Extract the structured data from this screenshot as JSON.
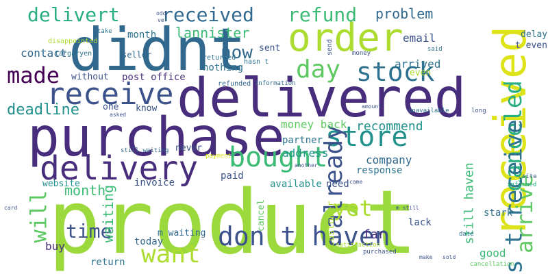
{
  "palette": {
    "dark_purple": "#440154",
    "indigo": "#472d7b",
    "violet": "#433b83",
    "slate_blue": "#3b528b",
    "steel_blue": "#31688e",
    "teal_blue": "#2c728e",
    "teal": "#21918c",
    "sea_green": "#28ae80",
    "green": "#3bbb75",
    "light_green": "#5ec962",
    "lime": "#addc30",
    "yellow": "#dde318"
  },
  "words": [
    "product",
    "purchase",
    "delivered",
    "didnt",
    "order",
    "received",
    "delivery",
    "receive",
    "bought",
    "store",
    "don t haven",
    "want",
    "stock",
    "day",
    "already",
    "canceled",
    "arrive",
    "s t receive",
    "yet",
    "made",
    "delivert",
    "received",
    "refund",
    "time",
    "will",
    "now",
    "deadline",
    "lannister",
    "problem",
    "month",
    "month",
    "contact",
    "waiting",
    "still haven",
    "email",
    "arrived",
    "recommend",
    "money back",
    "address",
    "company",
    "response",
    "partner",
    "far",
    "lack",
    "good",
    "stark",
    "today",
    "buy",
    "return",
    "invoice",
    "website",
    "paid",
    "available",
    "need",
    "customer",
    "cancel",
    "never",
    "post office",
    "without",
    "nothing",
    "one",
    "know",
    "asked",
    "still waiting",
    "sent",
    "send",
    "seller",
    "take",
    "disappointed",
    "targaryen",
    "returned",
    "hasn t",
    "money",
    "refunded",
    "information",
    "amount",
    "unavailable",
    "long",
    "delay",
    "t even",
    "even",
    "said",
    "sold",
    "date",
    "cancellation",
    "make",
    "site",
    "informed",
    "came",
    "purchased",
    "m still",
    "m waiting",
    "satisfaction",
    "payment",
    "another",
    "card",
    "odd",
    "ve"
  ]
}
